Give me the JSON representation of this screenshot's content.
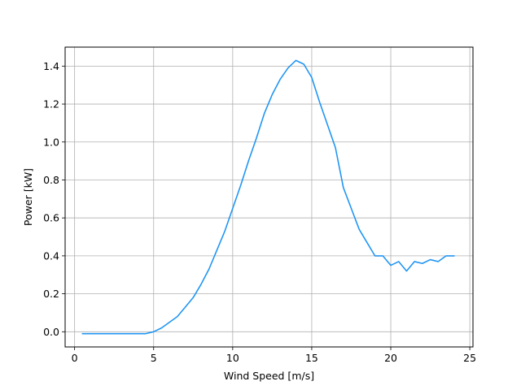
{
  "chart_data": {
    "type": "line",
    "title": "",
    "xlabel": "Wind Speed [m/s]",
    "ylabel": "Power [kW]",
    "xlim": [
      -0.6,
      25.2
    ],
    "ylim": [
      -0.08,
      1.5
    ],
    "xticks": [
      0,
      5,
      10,
      15,
      20,
      25
    ],
    "xtick_labels": [
      "0",
      "5",
      "10",
      "15",
      "20",
      "25"
    ],
    "yticks": [
      0.0,
      0.2,
      0.4,
      0.6,
      0.8,
      1.0,
      1.2,
      1.4
    ],
    "ytick_labels": [
      "0.0",
      "0.2",
      "0.4",
      "0.6",
      "0.8",
      "1.0",
      "1.2",
      "1.4"
    ],
    "grid": true,
    "line_color": "#2196f3",
    "series": [
      {
        "x": [
          0.5,
          1,
          1.5,
          2,
          2.5,
          3,
          3.5,
          4,
          4.5,
          5,
          5.5,
          6,
          6.5,
          7,
          7.5,
          8,
          8.5,
          9,
          9.5,
          10,
          10.5,
          11,
          11.5,
          12,
          12.5,
          13,
          13.5,
          14,
          14.5,
          15,
          15.5,
          16,
          16.5,
          17,
          17.5,
          18,
          18.5,
          19,
          19.5,
          20,
          20.5,
          21,
          21.5,
          22,
          22.5,
          23,
          23.5,
          24
        ],
        "y": [
          -0.01,
          -0.01,
          -0.01,
          -0.01,
          -0.01,
          -0.01,
          -0.01,
          -0.01,
          -0.01,
          0.0,
          0.02,
          0.05,
          0.08,
          0.13,
          0.18,
          0.25,
          0.33,
          0.43,
          0.53,
          0.65,
          0.77,
          0.9,
          1.02,
          1.15,
          1.25,
          1.33,
          1.39,
          1.43,
          1.41,
          1.34,
          1.21,
          1.09,
          0.97,
          0.76,
          0.65,
          0.54,
          0.47,
          0.4,
          0.4,
          0.35,
          0.37,
          0.32,
          0.37,
          0.36,
          0.38,
          0.37,
          0.4,
          0.4
        ]
      }
    ]
  }
}
